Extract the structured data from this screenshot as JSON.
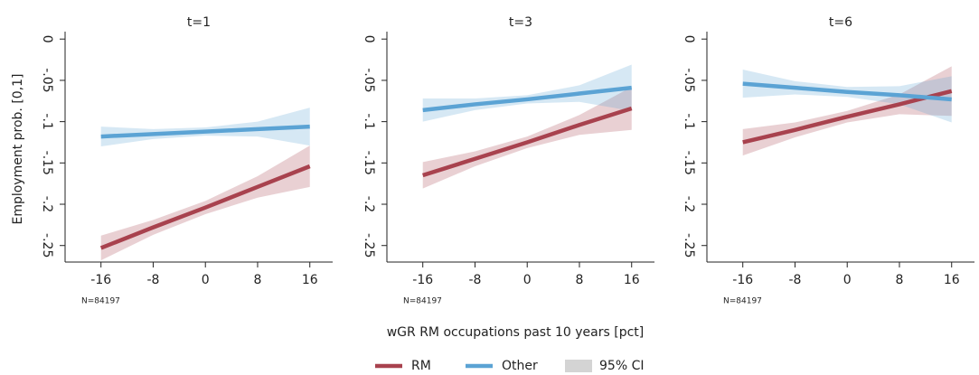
{
  "figure": {
    "ylabel": "Employment prob. [0,1]",
    "xlabel": "wGR RM occupations past 10 years [pct]",
    "ci_label": "95% CI",
    "ci_color": "#d4d4d4"
  },
  "chart_data": [
    {
      "type": "line",
      "title": "t=1",
      "note": "N=84197",
      "x": [
        -16,
        -8,
        0,
        8,
        16
      ],
      "xlim": [
        -21.5,
        19.5
      ],
      "xticks": [
        -16,
        -8,
        0,
        8,
        16
      ],
      "ylim": [
        -0.27,
        0.009
      ],
      "yticks": [
        0,
        {
          "value": -0.05,
          "label": "-.05"
        },
        {
          "value": -0.1,
          "label": "-.1"
        },
        {
          "value": -0.15,
          "label": "-.15"
        },
        {
          "value": -0.2,
          "label": "-.2"
        },
        {
          "value": -0.25,
          "label": "-.25"
        }
      ],
      "series": [
        {
          "name": "RM",
          "color": "#a8424e",
          "values": [
            -0.253,
            -0.228,
            -0.204,
            -0.179,
            -0.154
          ],
          "lower": [
            -0.268,
            -0.237,
            -0.212,
            -0.192,
            -0.179
          ],
          "upper": [
            -0.238,
            -0.219,
            -0.196,
            -0.166,
            -0.129
          ]
        },
        {
          "name": "Other",
          "color": "#5ba3d4",
          "values": [
            -0.118,
            -0.115,
            -0.112,
            -0.109,
            -0.106
          ],
          "lower": [
            -0.13,
            -0.121,
            -0.117,
            -0.118,
            -0.129
          ],
          "upper": [
            -0.106,
            -0.109,
            -0.107,
            -0.1,
            -0.083
          ]
        }
      ]
    },
    {
      "type": "line",
      "title": "t=3",
      "note": "N=84197",
      "x": [
        -16,
        -8,
        0,
        8,
        16
      ],
      "xlim": [
        -21.5,
        19.5
      ],
      "xticks": [
        -16,
        -8,
        0,
        8,
        16
      ],
      "ylim": [
        -0.27,
        0.009
      ],
      "yticks": [
        0,
        {
          "value": -0.05,
          "label": "-.05"
        },
        {
          "value": -0.1,
          "label": "-.1"
        },
        {
          "value": -0.15,
          "label": "-.15"
        },
        {
          "value": -0.2,
          "label": "-.2"
        },
        {
          "value": -0.25,
          "label": "-.25"
        }
      ],
      "series": [
        {
          "name": "RM",
          "color": "#a8424e",
          "values": [
            -0.165,
            -0.145,
            -0.125,
            -0.104,
            -0.084
          ],
          "lower": [
            -0.181,
            -0.154,
            -0.132,
            -0.116,
            -0.11
          ],
          "upper": [
            -0.149,
            -0.136,
            -0.118,
            -0.092,
            -0.058
          ]
        },
        {
          "name": "Other",
          "color": "#5ba3d4",
          "values": [
            -0.086,
            -0.079,
            -0.073,
            -0.066,
            -0.059
          ],
          "lower": [
            -0.1,
            -0.086,
            -0.078,
            -0.076,
            -0.087
          ],
          "upper": [
            -0.072,
            -0.072,
            -0.068,
            -0.056,
            -0.031
          ]
        }
      ]
    },
    {
      "type": "line",
      "title": "t=6",
      "note": "N=84197",
      "x": [
        -16,
        -8,
        0,
        8,
        16
      ],
      "xlim": [
        -21.5,
        19.5
      ],
      "xticks": [
        -16,
        -8,
        0,
        8,
        16
      ],
      "ylim": [
        -0.27,
        0.009
      ],
      "yticks": [
        0,
        {
          "value": -0.05,
          "label": "-.05"
        },
        {
          "value": -0.1,
          "label": "-.1"
        },
        {
          "value": -0.15,
          "label": "-.15"
        },
        {
          "value": -0.2,
          "label": "-.2"
        },
        {
          "value": -0.25,
          "label": "-.25"
        }
      ],
      "series": [
        {
          "name": "RM",
          "color": "#a8424e",
          "values": [
            -0.125,
            -0.11,
            -0.094,
            -0.079,
            -0.063
          ],
          "lower": [
            -0.141,
            -0.119,
            -0.101,
            -0.091,
            -0.093
          ],
          "upper": [
            -0.109,
            -0.101,
            -0.087,
            -0.067,
            -0.033
          ]
        },
        {
          "name": "Other",
          "color": "#5ba3d4",
          "values": [
            -0.054,
            -0.059,
            -0.064,
            -0.068,
            -0.073
          ],
          "lower": [
            -0.071,
            -0.067,
            -0.07,
            -0.079,
            -0.101
          ],
          "upper": [
            -0.037,
            -0.051,
            -0.058,
            -0.057,
            -0.045
          ]
        }
      ]
    }
  ]
}
